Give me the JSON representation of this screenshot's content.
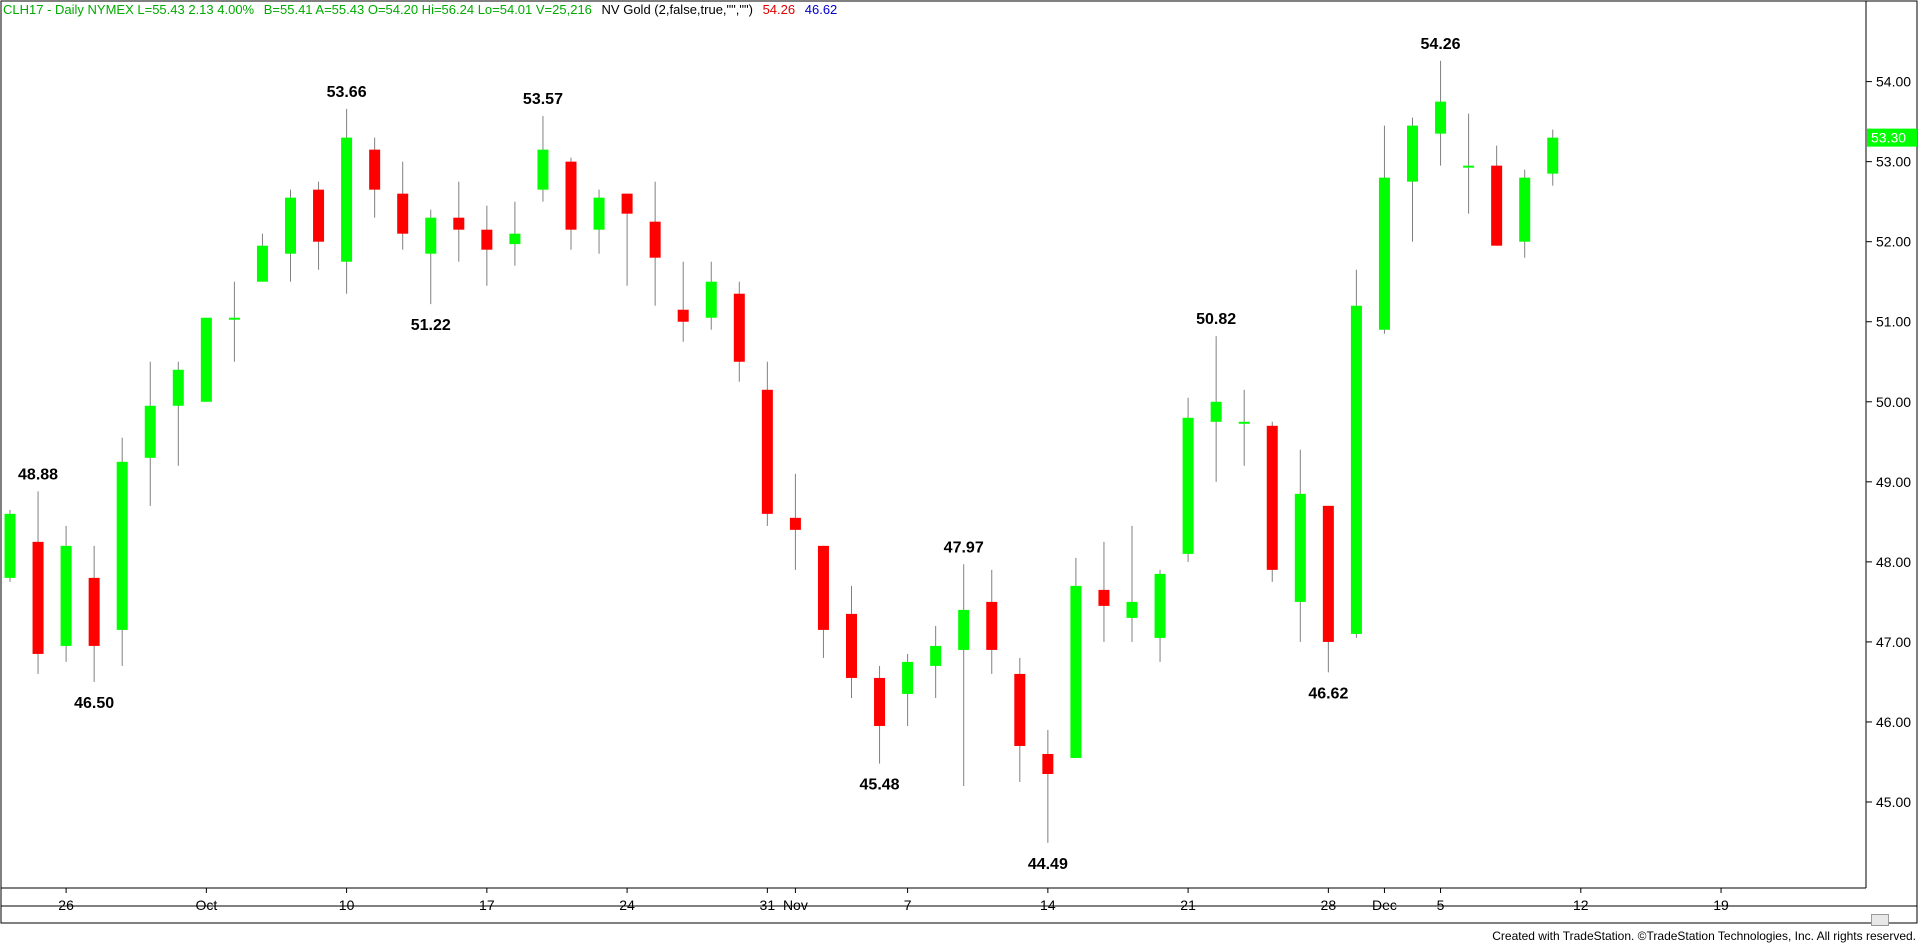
{
  "header": {
    "symbol_info": "CLH17 - Daily  NYMEX  L=55.43  2.13  4.00%",
    "quote_info": "B=55.41  A=55.43  O=54.20  Hi=56.24  Lo=54.01  V=25,216",
    "indicator_label": "NV Gold (2,false,true,\"\",\"\")",
    "indicator_value_1": "54.26",
    "indicator_value_2": "46.62"
  },
  "colors": {
    "up": "#00ff00",
    "down": "#ff0000",
    "wick": "#808080",
    "header_green": "#00aa00",
    "header_blue": "#0000cc",
    "price_tag": "#00ff00"
  },
  "footer": {
    "credit": "Created with TradeStation. ©TradeStation Technologies, Inc. All rights reserved."
  },
  "chart_data": {
    "type": "candlestick",
    "title": "",
    "xlabel": "",
    "ylabel": "",
    "ylim": [
      43.8,
      55.1
    ],
    "y_ticks": [
      "45.00",
      "46.00",
      "47.00",
      "48.00",
      "49.00",
      "50.00",
      "51.00",
      "52.00",
      "53.00",
      "54.00"
    ],
    "last_price_label": "53.30",
    "x_ticks": [
      {
        "label": "26",
        "index": 2
      },
      {
        "label": "Oct",
        "index": 7
      },
      {
        "label": "10",
        "index": 12
      },
      {
        "label": "17",
        "index": 17
      },
      {
        "label": "24",
        "index": 22
      },
      {
        "label": "31",
        "index": 27
      },
      {
        "label": "Nov",
        "index": 28
      },
      {
        "label": "7",
        "index": 32
      },
      {
        "label": "14",
        "index": 37
      },
      {
        "label": "21",
        "index": 42
      },
      {
        "label": "28",
        "index": 47
      },
      {
        "label": "Dec",
        "index": 49
      },
      {
        "label": "5",
        "index": 51
      },
      {
        "label": "12",
        "index": 56
      },
      {
        "label": "19",
        "index": 61
      }
    ],
    "candles": [
      {
        "o": 47.8,
        "h": 48.65,
        "l": 47.75,
        "c": 48.6
      },
      {
        "o": 48.25,
        "h": 48.88,
        "l": 46.6,
        "c": 46.85
      },
      {
        "o": 46.95,
        "h": 48.45,
        "l": 46.75,
        "c": 48.2
      },
      {
        "o": 47.8,
        "h": 48.2,
        "l": 46.5,
        "c": 46.95
      },
      {
        "o": 47.15,
        "h": 49.55,
        "l": 46.7,
        "c": 49.25
      },
      {
        "o": 49.3,
        "h": 50.5,
        "l": 48.7,
        "c": 49.95
      },
      {
        "o": 49.95,
        "h": 50.5,
        "l": 49.2,
        "c": 50.4
      },
      {
        "o": 50.0,
        "h": 50.95,
        "l": 50.0,
        "c": 51.05
      },
      {
        "o": 51.05,
        "h": 51.5,
        "l": 50.5,
        "c": 51.05
      },
      {
        "o": 51.5,
        "h": 52.1,
        "l": 51.5,
        "c": 51.95
      },
      {
        "o": 51.85,
        "h": 52.65,
        "l": 51.5,
        "c": 52.55
      },
      {
        "o": 52.65,
        "h": 52.75,
        "l": 51.65,
        "c": 52.0
      },
      {
        "o": 51.75,
        "h": 53.66,
        "l": 51.35,
        "c": 53.3
      },
      {
        "o": 53.15,
        "h": 53.3,
        "l": 52.3,
        "c": 52.65
      },
      {
        "o": 52.6,
        "h": 53.0,
        "l": 51.9,
        "c": 52.1
      },
      {
        "o": 51.85,
        "h": 52.4,
        "l": 51.22,
        "c": 52.3
      },
      {
        "o": 52.3,
        "h": 52.75,
        "l": 51.75,
        "c": 52.15
      },
      {
        "o": 52.15,
        "h": 52.45,
        "l": 51.45,
        "c": 51.9
      },
      {
        "o": 51.97,
        "h": 52.5,
        "l": 51.7,
        "c": 52.1
      },
      {
        "o": 52.65,
        "h": 53.57,
        "l": 52.5,
        "c": 53.15
      },
      {
        "o": 53.0,
        "h": 53.05,
        "l": 51.9,
        "c": 52.15
      },
      {
        "o": 52.15,
        "h": 52.65,
        "l": 51.85,
        "c": 52.55
      },
      {
        "o": 52.6,
        "h": 52.6,
        "l": 51.45,
        "c": 52.35
      },
      {
        "o": 52.25,
        "h": 52.75,
        "l": 51.2,
        "c": 51.8
      },
      {
        "o": 51.15,
        "h": 51.75,
        "l": 50.75,
        "c": 51.0
      },
      {
        "o": 51.05,
        "h": 51.75,
        "l": 50.9,
        "c": 51.5
      },
      {
        "o": 51.35,
        "h": 51.5,
        "l": 50.25,
        "c": 50.5
      },
      {
        "o": 50.15,
        "h": 50.5,
        "l": 48.45,
        "c": 48.6
      },
      {
        "o": 48.55,
        "h": 49.1,
        "l": 47.9,
        "c": 48.4
      },
      {
        "o": 48.2,
        "h": 48.2,
        "l": 46.8,
        "c": 47.15
      },
      {
        "o": 47.35,
        "h": 47.7,
        "l": 46.3,
        "c": 46.55
      },
      {
        "o": 46.55,
        "h": 46.7,
        "l": 45.48,
        "c": 45.95
      },
      {
        "o": 46.35,
        "h": 46.85,
        "l": 45.95,
        "c": 46.75
      },
      {
        "o": 46.7,
        "h": 47.2,
        "l": 46.3,
        "c": 46.95
      },
      {
        "o": 46.9,
        "h": 47.97,
        "l": 45.2,
        "c": 47.4
      },
      {
        "o": 47.5,
        "h": 47.9,
        "l": 46.6,
        "c": 46.9
      },
      {
        "o": 46.6,
        "h": 46.8,
        "l": 45.25,
        "c": 45.7
      },
      {
        "o": 45.6,
        "h": 45.9,
        "l": 44.49,
        "c": 45.35
      },
      {
        "o": 45.55,
        "h": 48.05,
        "l": 45.55,
        "c": 47.7
      },
      {
        "o": 47.65,
        "h": 48.25,
        "l": 47.0,
        "c": 47.45
      },
      {
        "o": 47.3,
        "h": 48.45,
        "l": 47.0,
        "c": 47.5
      },
      {
        "o": 47.05,
        "h": 47.9,
        "l": 46.75,
        "c": 47.85
      },
      {
        "o": 48.1,
        "h": 50.05,
        "l": 48.0,
        "c": 49.8
      },
      {
        "o": 49.75,
        "h": 50.82,
        "l": 49.0,
        "c": 50.0
      },
      {
        "o": 49.75,
        "h": 50.15,
        "l": 49.2,
        "c": 49.75
      },
      {
        "o": 49.7,
        "h": 49.75,
        "l": 47.75,
        "c": 47.9
      },
      {
        "o": 47.5,
        "h": 49.4,
        "l": 47.0,
        "c": 48.85
      },
      {
        "o": 48.7,
        "h": 48.7,
        "l": 46.62,
        "c": 47.0
      },
      {
        "o": 47.1,
        "h": 51.65,
        "l": 47.05,
        "c": 51.2
      },
      {
        "o": 50.9,
        "h": 53.45,
        "l": 50.85,
        "c": 52.8
      },
      {
        "o": 52.75,
        "h": 53.55,
        "l": 52.0,
        "c": 53.45
      },
      {
        "o": 53.35,
        "h": 54.26,
        "l": 52.95,
        "c": 53.75
      },
      {
        "o": 52.95,
        "h": 53.6,
        "l": 52.35,
        "c": 52.95
      },
      {
        "o": 52.95,
        "h": 53.2,
        "l": 51.95,
        "c": 51.95
      },
      {
        "o": 52.0,
        "h": 52.9,
        "l": 51.8,
        "c": 52.8
      },
      {
        "o": 52.85,
        "h": 53.4,
        "l": 52.7,
        "c": 53.3
      }
    ],
    "annotations": [
      {
        "index": 1,
        "text": "48.88",
        "position": "above"
      },
      {
        "index": 3,
        "text": "46.50",
        "position": "below"
      },
      {
        "index": 12,
        "text": "53.66",
        "position": "above"
      },
      {
        "index": 15,
        "text": "51.22",
        "position": "below"
      },
      {
        "index": 19,
        "text": "53.57",
        "position": "above"
      },
      {
        "index": 31,
        "text": "45.48",
        "position": "below"
      },
      {
        "index": 34,
        "text": "47.97",
        "position": "above"
      },
      {
        "index": 37,
        "text": "44.49",
        "position": "below"
      },
      {
        "index": 43,
        "text": "50.82",
        "position": "above"
      },
      {
        "index": 47,
        "text": "46.62",
        "position": "below"
      },
      {
        "index": 51,
        "text": "54.26",
        "position": "above"
      }
    ]
  }
}
